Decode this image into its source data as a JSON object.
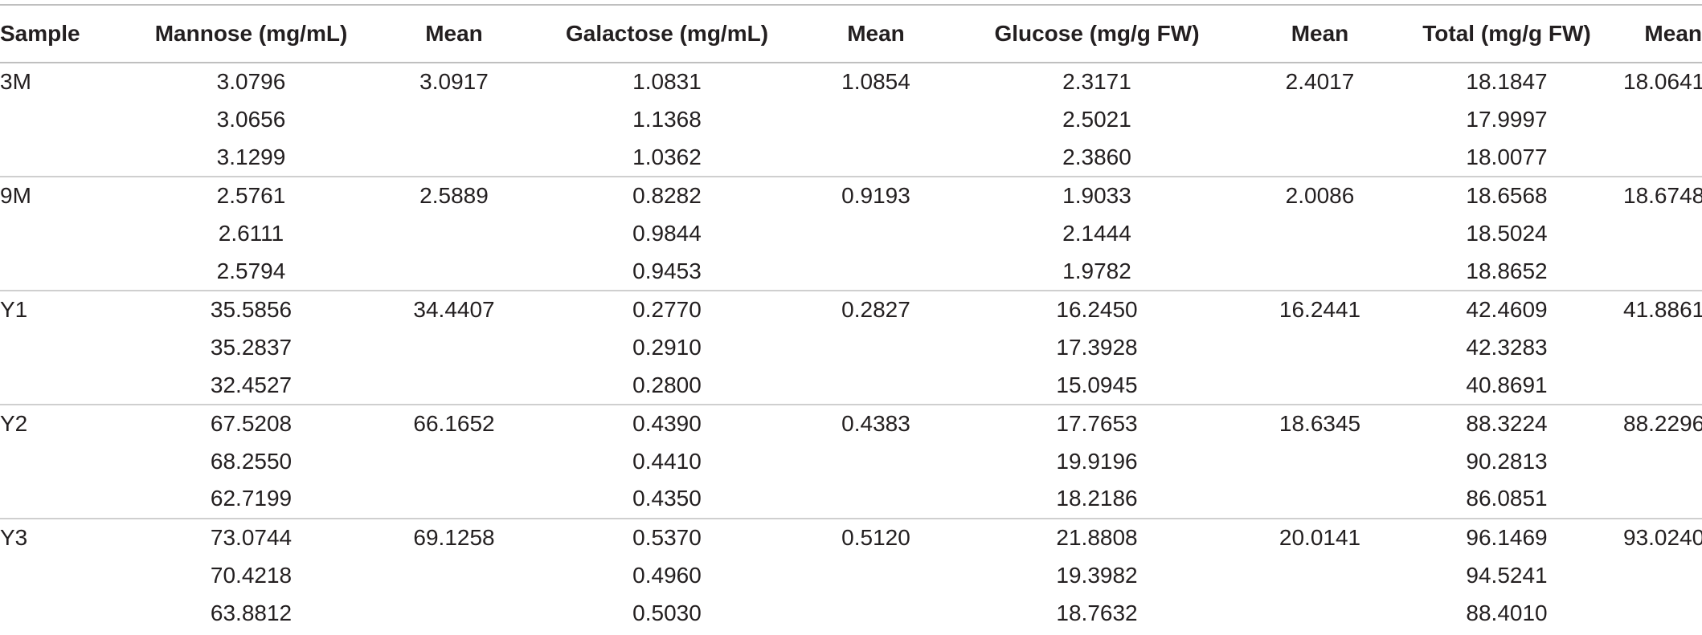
{
  "columns": [
    "Sample",
    "Mannose (mg/mL)",
    "Mean",
    "Galactose (mg/mL)",
    "Mean",
    "Glucose (mg/g FW)",
    "Mean",
    "Total (mg/g FW)",
    "Mean"
  ],
  "rows": [
    [
      "3M",
      "3.0796",
      "3.0917",
      "1.0831",
      "1.0854",
      "2.3171",
      "2.4017",
      "18.1847",
      "18.0641"
    ],
    [
      "",
      "3.0656",
      "",
      "1.1368",
      "",
      "2.5021",
      "",
      "17.9997",
      ""
    ],
    [
      "",
      "3.1299",
      "",
      "1.0362",
      "",
      "2.3860",
      "",
      "18.0077",
      ""
    ],
    [
      "9M",
      "2.5761",
      "2.5889",
      "0.8282",
      "0.9193",
      "1.9033",
      "2.0086",
      "18.6568",
      "18.6748"
    ],
    [
      "",
      "2.6111",
      "",
      "0.9844",
      "",
      "2.1444",
      "",
      "18.5024",
      ""
    ],
    [
      "",
      "2.5794",
      "",
      "0.9453",
      "",
      "1.9782",
      "",
      "18.8652",
      ""
    ],
    [
      "Y1",
      "35.5856",
      "34.4407",
      "0.2770",
      "0.2827",
      "16.2450",
      "16.2441",
      "42.4609",
      "41.8861"
    ],
    [
      "",
      "35.2837",
      "",
      "0.2910",
      "",
      "17.3928",
      "",
      "42.3283",
      ""
    ],
    [
      "",
      "32.4527",
      "",
      "0.2800",
      "",
      "15.0945",
      "",
      "40.8691",
      ""
    ],
    [
      "Y2",
      "67.5208",
      "66.1652",
      "0.4390",
      "0.4383",
      "17.7653",
      "18.6345",
      "88.3224",
      "88.2296"
    ],
    [
      "",
      "68.2550",
      "",
      "0.4410",
      "",
      "19.9196",
      "",
      "90.2813",
      ""
    ],
    [
      "",
      "62.7199",
      "",
      "0.4350",
      "",
      "18.2186",
      "",
      "86.0851",
      ""
    ],
    [
      "Y3",
      "73.0744",
      "69.1258",
      "0.5370",
      "0.5120",
      "21.8808",
      "20.0141",
      "96.1469",
      "93.0240"
    ],
    [
      "",
      "70.4218",
      "",
      "0.4960",
      "",
      "19.3982",
      "",
      "94.5241",
      ""
    ],
    [
      "",
      "63.8812",
      "",
      "0.5030",
      "",
      "18.7632",
      "",
      "88.4010",
      ""
    ]
  ]
}
